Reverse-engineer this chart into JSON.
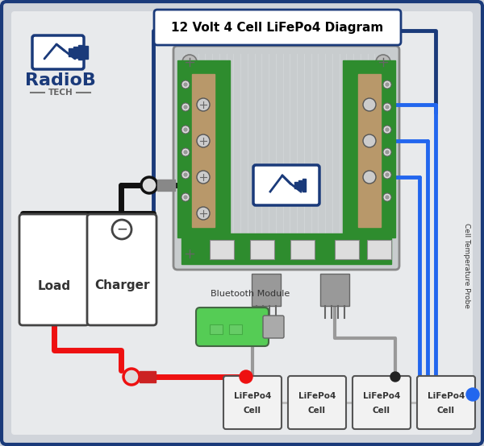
{
  "title": "12 Volt 4 Cell LiFePo4 Diagram",
  "bg_color": "#d0d4da",
  "border_color": "#1a3a7a",
  "title_box_color": "#ffffff",
  "title_text_color": "#000000",
  "logo_color": "#1a3a7a",
  "wire_black": "#111111",
  "wire_red": "#ee1111",
  "wire_blue": "#2266ee",
  "wire_gray": "#999999",
  "bluetooth_color": "#55cc55",
  "temp_probe_text": "Cell Temperature Probe",
  "bluetooth_text": "Bluetooth Module",
  "bms_silver": "#c8ccce",
  "bms_green": "#2e8c2e",
  "bms_tan": "#b8986a",
  "bms_screw": "#aaaaaa"
}
